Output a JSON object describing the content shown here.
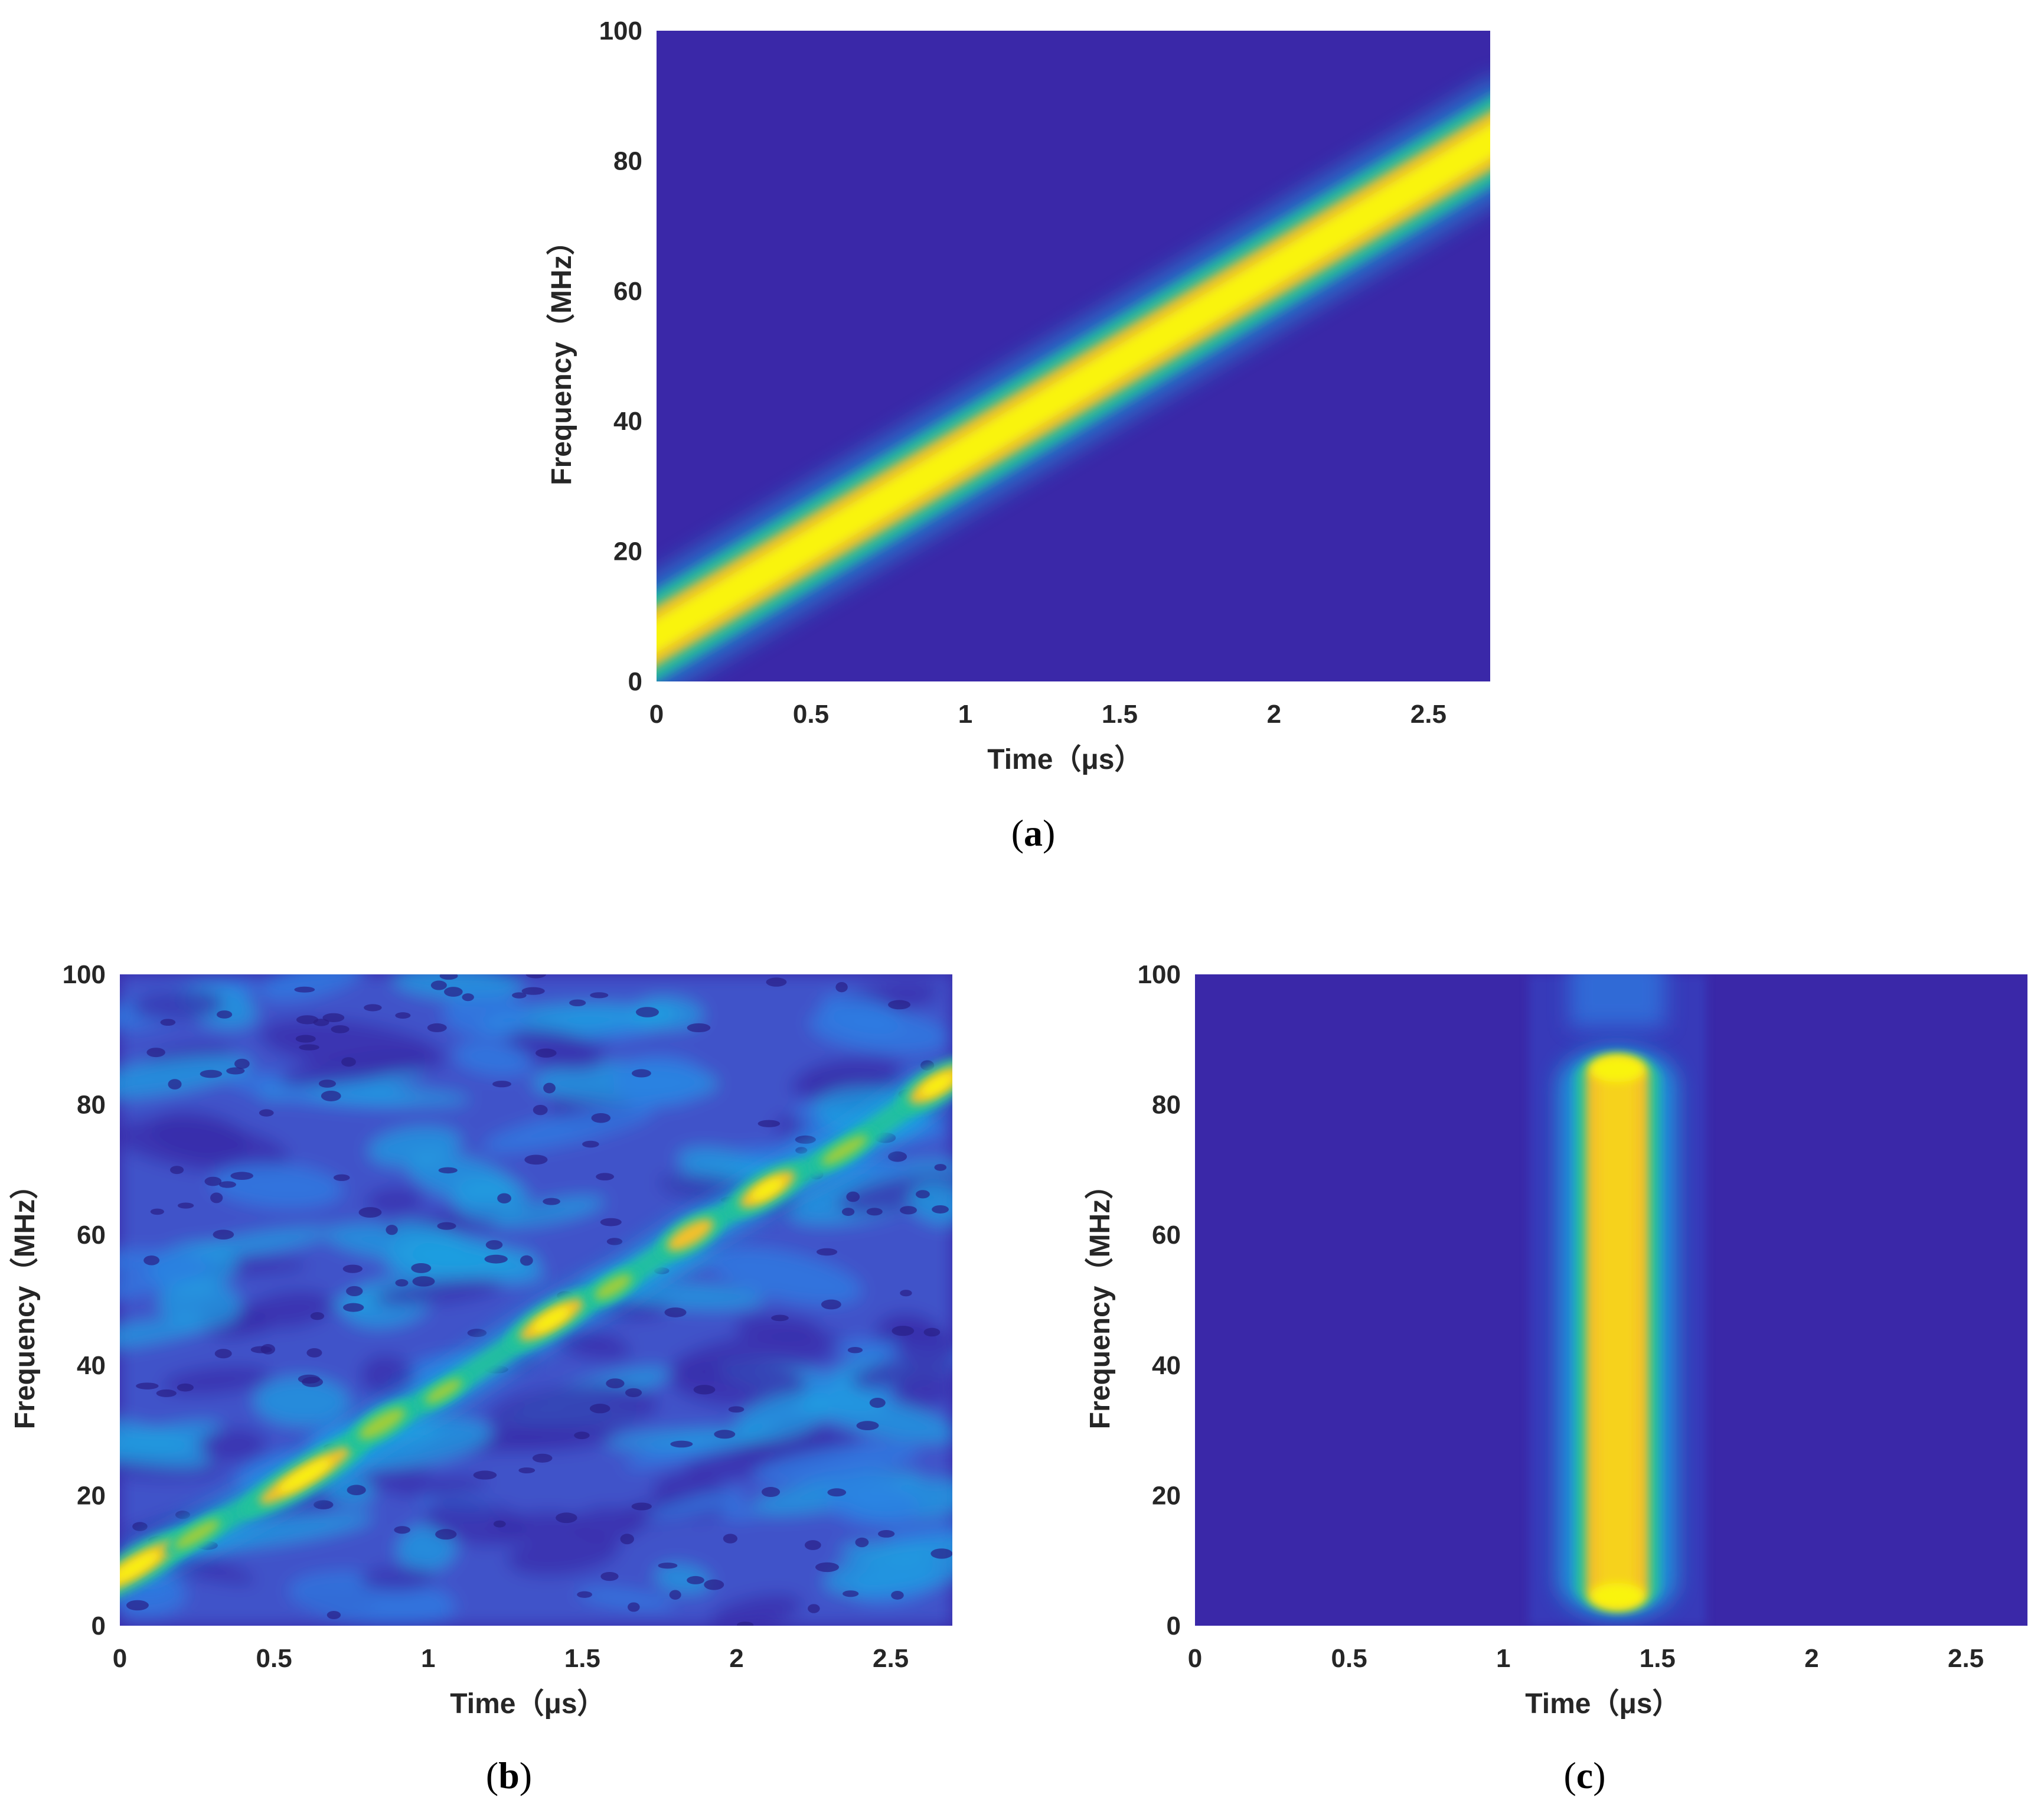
{
  "figure": {
    "colors": {
      "background": "#3a28a8",
      "ridge_core": "#f9f40f",
      "ridge_mid": "#f3c02c",
      "ridge_edge": "#21c39b",
      "ridge_outer": "#1aa3e0",
      "tick_text": "#262626"
    }
  },
  "chart_data": [
    {
      "id": "a",
      "type": "heatmap",
      "caption_letter": "a",
      "xlabel": "Time（μs）",
      "ylabel": "Frequency（MHz）",
      "xlim": [
        0,
        2.7
      ],
      "ylim": [
        0,
        100
      ],
      "xticks": [
        0,
        0.5,
        1,
        1.5,
        2,
        2.5
      ],
      "xtick_labels": [
        "0",
        "0.5",
        "1",
        "1.5",
        "2",
        "2.5"
      ],
      "yticks": [
        0,
        20,
        40,
        60,
        80,
        100
      ],
      "ytick_labels": [
        "0",
        "20",
        "40",
        "60",
        "80",
        "100"
      ],
      "description_ridge": "linear chirp",
      "ridge": {
        "kind": "line",
        "t": [
          0,
          2.7
        ],
        "f": [
          7,
          83
        ],
        "width_mhz": 4
      },
      "noise": 0
    },
    {
      "id": "b",
      "type": "heatmap",
      "caption_letter": "b",
      "xlabel": "Time（μs）",
      "ylabel": "Frequency（MHz）",
      "xlim": [
        0,
        2.7
      ],
      "ylim": [
        0,
        100
      ],
      "xticks": [
        0,
        0.5,
        1,
        1.5,
        2,
        2.5
      ],
      "xtick_labels": [
        "0",
        "0.5",
        "1",
        "1.5",
        "2",
        "2.5"
      ],
      "yticks": [
        0,
        20,
        40,
        60,
        80,
        100
      ],
      "ytick_labels": [
        "0",
        "20",
        "40",
        "60",
        "80",
        "100"
      ],
      "ridge": {
        "kind": "blobs",
        "points": [
          {
            "t": 0.05,
            "f": 9,
            "w": 0.18,
            "s": 0.95
          },
          {
            "t": 0.25,
            "f": 14,
            "w": 0.1,
            "s": 0.6
          },
          {
            "t": 0.6,
            "f": 23,
            "w": 0.2,
            "s": 0.9
          },
          {
            "t": 0.85,
            "f": 31,
            "w": 0.1,
            "s": 0.75
          },
          {
            "t": 1.05,
            "f": 36,
            "w": 0.08,
            "s": 0.55
          },
          {
            "t": 1.4,
            "f": 47,
            "w": 0.14,
            "s": 0.9
          },
          {
            "t": 1.6,
            "f": 52,
            "w": 0.08,
            "s": 0.65
          },
          {
            "t": 1.85,
            "f": 60,
            "w": 0.1,
            "s": 0.85
          },
          {
            "t": 2.1,
            "f": 67,
            "w": 0.12,
            "s": 0.9
          },
          {
            "t": 2.35,
            "f": 73,
            "w": 0.1,
            "s": 0.6
          },
          {
            "t": 2.65,
            "f": 83,
            "w": 0.12,
            "s": 0.95
          }
        ]
      },
      "noise": 1
    },
    {
      "id": "c",
      "type": "heatmap",
      "caption_letter": "c",
      "xlabel": "Time（μs）",
      "ylabel": "Frequency（MHz）",
      "xlim": [
        0,
        2.7
      ],
      "ylim": [
        0,
        100
      ],
      "xticks": [
        0,
        0.5,
        1,
        1.5,
        2,
        2.5
      ],
      "xtick_labels": [
        "0",
        "0.5",
        "1",
        "1.5",
        "2",
        "2.5"
      ],
      "yticks": [
        0,
        20,
        40,
        60,
        80,
        100
      ],
      "ytick_labels": [
        "0",
        "20",
        "40",
        "60",
        "80",
        "100"
      ],
      "ridge": {
        "kind": "vertical",
        "t": 1.37,
        "f_range": [
          4,
          86
        ],
        "width_us": 0.12
      },
      "noise": 0
    }
  ]
}
